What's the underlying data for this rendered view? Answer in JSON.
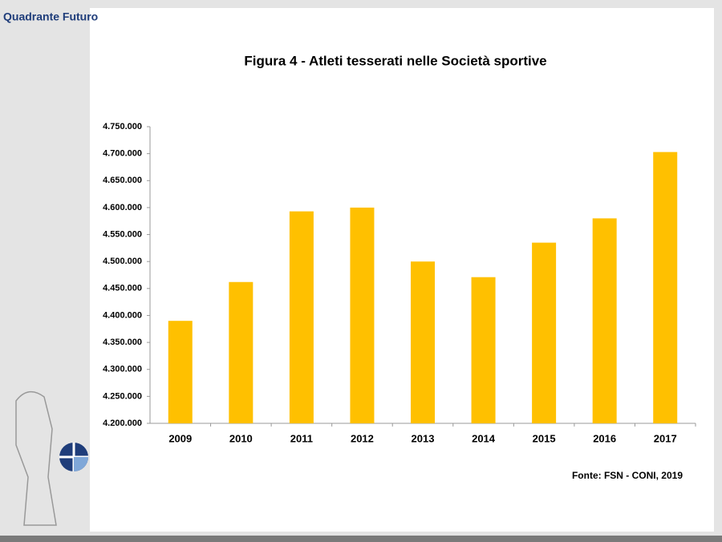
{
  "header": {
    "brand": "Quadrante Futuro"
  },
  "chart_data": {
    "type": "bar",
    "title": "Figura 4  - Atleti tesserati nelle Società sportive",
    "categories": [
      "2009",
      "2010",
      "2011",
      "2012",
      "2013",
      "2014",
      "2015",
      "2016",
      "2017"
    ],
    "values": [
      4390000,
      4462000,
      4593000,
      4600000,
      4500000,
      4471000,
      4535000,
      4580000,
      4703000
    ],
    "color": "#ffc000",
    "ylim": [
      4200000,
      4750000
    ],
    "yticks": [
      {
        "value": 4200000,
        "label": "4.200.000"
      },
      {
        "value": 4250000,
        "label": "4.250.000"
      },
      {
        "value": 4300000,
        "label": "4.300.000"
      },
      {
        "value": 4350000,
        "label": "4.350.000"
      },
      {
        "value": 4400000,
        "label": "4.400.000"
      },
      {
        "value": 4450000,
        "label": "4.450.000"
      },
      {
        "value": 4500000,
        "label": "4.500.000"
      },
      {
        "value": 4550000,
        "label": "4.550.000"
      },
      {
        "value": 4600000,
        "label": "4.600.000"
      },
      {
        "value": 4650000,
        "label": "4.650.000"
      },
      {
        "value": 4700000,
        "label": "4.700.000"
      },
      {
        "value": 4750000,
        "label": "4.750.000"
      }
    ],
    "grid": false,
    "source": "Fonte: FSN - CONI, 2019"
  }
}
